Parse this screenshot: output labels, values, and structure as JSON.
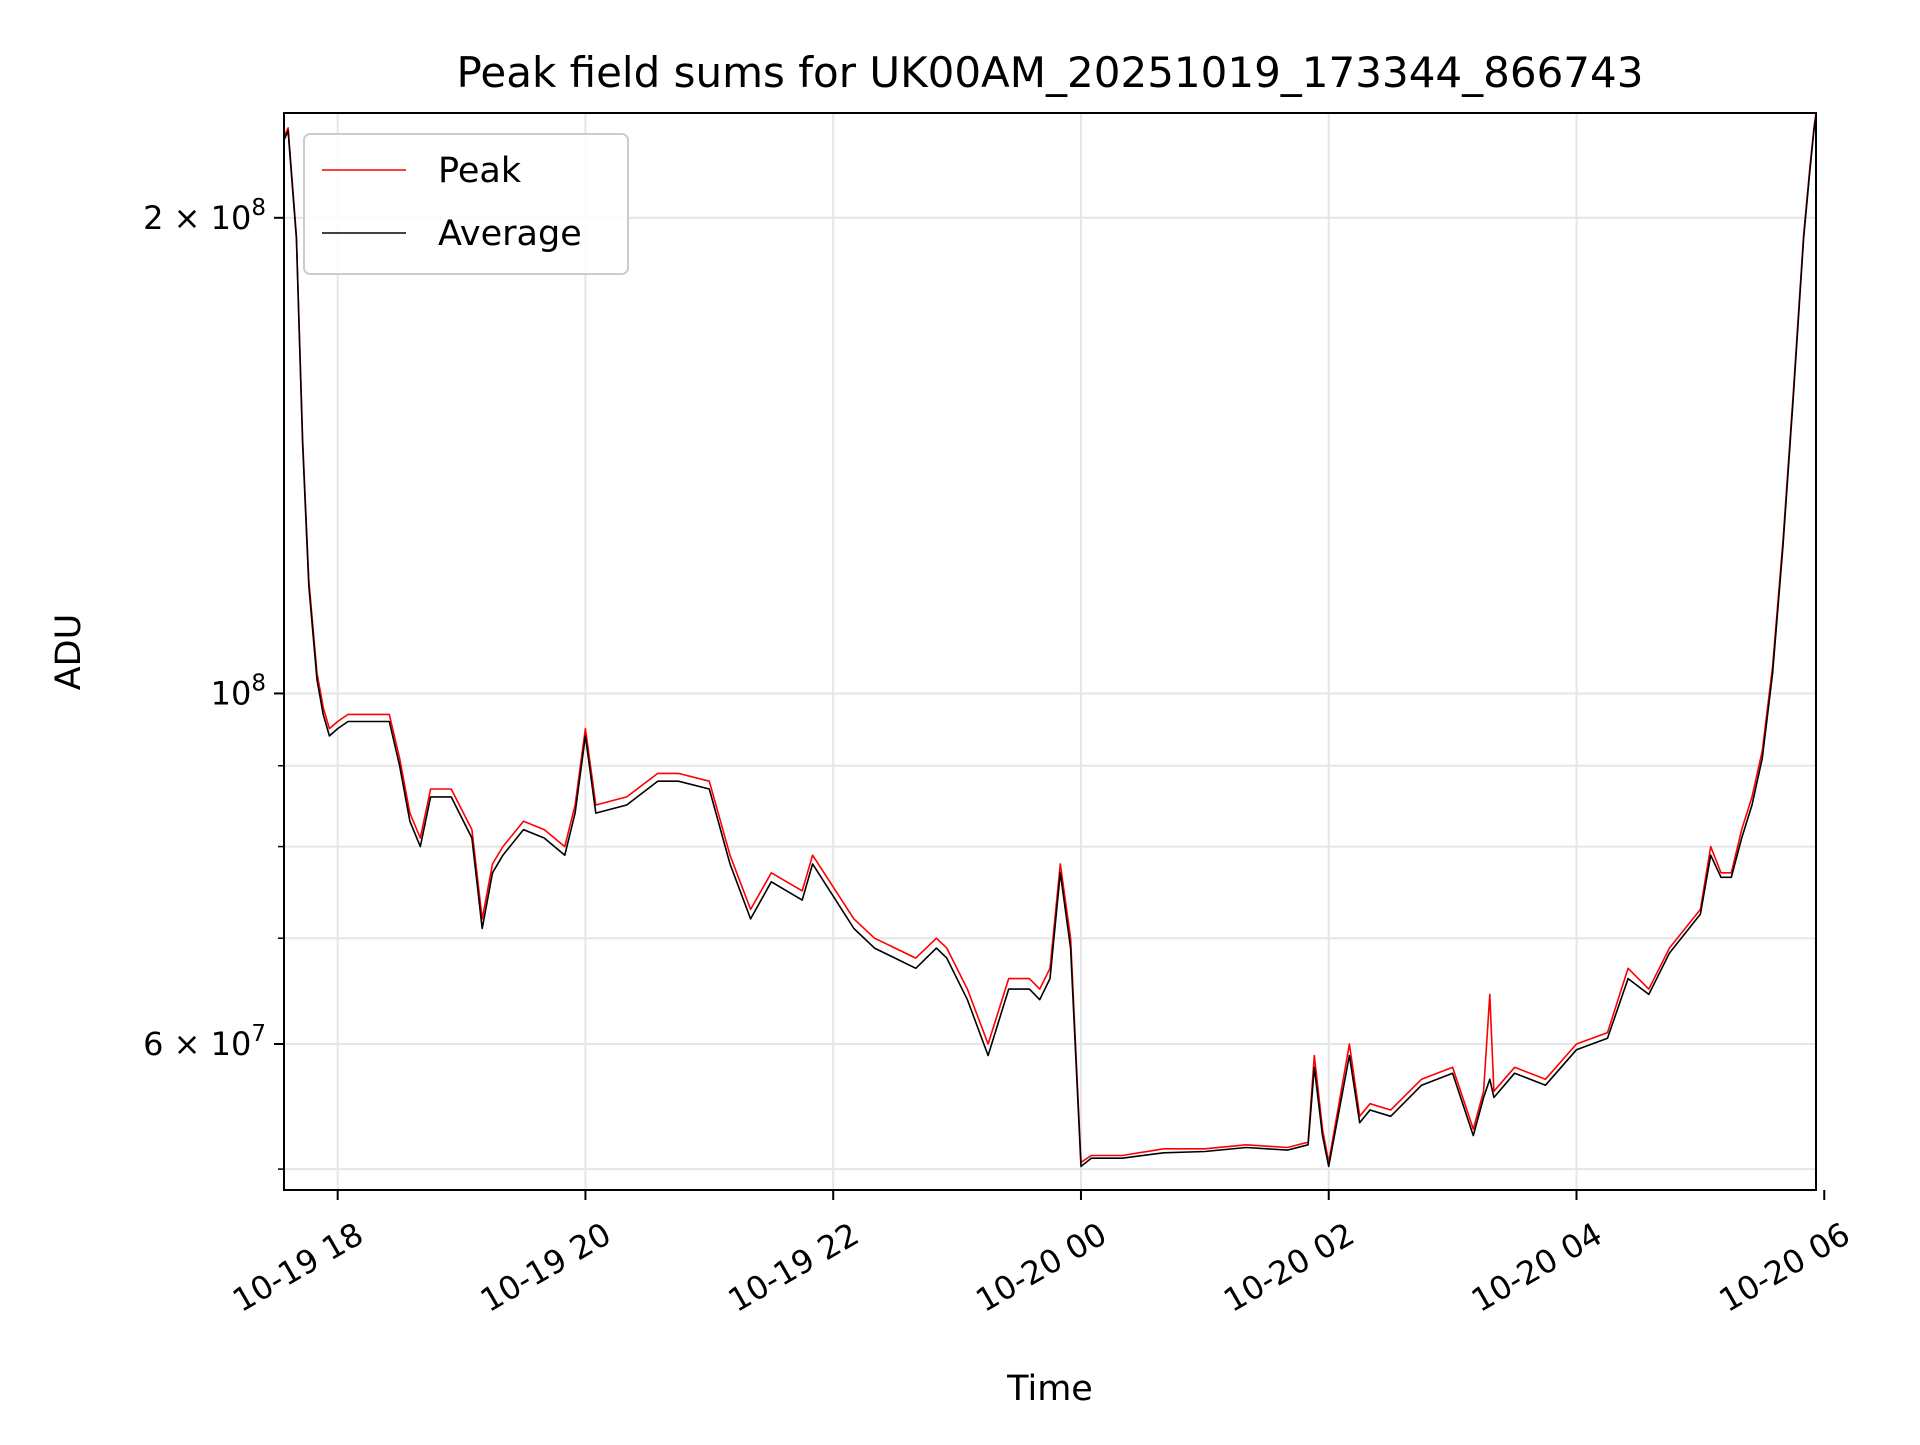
{
  "chart_data": {
    "type": "line",
    "title": "Peak field sums for UK00AM_20251019_173344_866743",
    "xlabel": "Time",
    "ylabel": "ADU",
    "y_scale": "log",
    "ylim": [
      48500000,
      233000000
    ],
    "xlim": [
      "2025-10-19 17:34",
      "2025-10-20 05:56"
    ],
    "grid": true,
    "legend": {
      "placement": "top-left",
      "entries": [
        "Peak",
        "Average"
      ]
    },
    "x_ticks": [
      {
        "t": "2025-10-19 18:00",
        "label": "10-19 18"
      },
      {
        "t": "2025-10-19 20:00",
        "label": "10-19 20"
      },
      {
        "t": "2025-10-19 22:00",
        "label": "10-19 22"
      },
      {
        "t": "2025-10-20 00:00",
        "label": "10-20 00"
      },
      {
        "t": "2025-10-20 02:00",
        "label": "10-20 02"
      },
      {
        "t": "2025-10-20 04:00",
        "label": "10-20 04"
      },
      {
        "t": "2025-10-20 06:00",
        "label": "10-20 06"
      }
    ],
    "y_major_ticks": [
      {
        "value": 200000000,
        "mantissa": "2",
        "exponent": "8"
      },
      {
        "value": 100000000,
        "mantissa": "",
        "exponent": "8"
      },
      {
        "value": 60000000,
        "mantissa": "6",
        "exponent": "7"
      }
    ],
    "y_minor_ticks": [
      50000000,
      70000000,
      80000000,
      90000000
    ],
    "series": [
      {
        "name": "Peak",
        "color": "#ff0000",
        "x": [
          "2025-10-19 17:34",
          "2025-10-19 17:36",
          "2025-10-19 17:40",
          "2025-10-19 17:43",
          "2025-10-19 17:46",
          "2025-10-19 17:50",
          "2025-10-19 17:53",
          "2025-10-19 17:56",
          "2025-10-19 18:00",
          "2025-10-19 18:05",
          "2025-10-19 18:15",
          "2025-10-19 18:25",
          "2025-10-19 18:30",
          "2025-10-19 18:35",
          "2025-10-19 18:40",
          "2025-10-19 18:45",
          "2025-10-19 18:55",
          "2025-10-19 19:05",
          "2025-10-19 19:10",
          "2025-10-19 19:15",
          "2025-10-19 19:20",
          "2025-10-19 19:30",
          "2025-10-19 19:40",
          "2025-10-19 19:50",
          "2025-10-19 19:55",
          "2025-10-19 20:00",
          "2025-10-19 20:05",
          "2025-10-19 20:20",
          "2025-10-19 20:35",
          "2025-10-19 20:45",
          "2025-10-19 21:00",
          "2025-10-19 21:10",
          "2025-10-19 21:20",
          "2025-10-19 21:30",
          "2025-10-19 21:45",
          "2025-10-19 21:50",
          "2025-10-19 22:10",
          "2025-10-19 22:20",
          "2025-10-19 22:40",
          "2025-10-19 22:50",
          "2025-10-19 22:55",
          "2025-10-19 23:05",
          "2025-10-19 23:15",
          "2025-10-19 23:25",
          "2025-10-19 23:35",
          "2025-10-19 23:40",
          "2025-10-19 23:45",
          "2025-10-19 23:50",
          "2025-10-19 23:55",
          "2025-10-20 00:00",
          "2025-10-20 00:05",
          "2025-10-20 00:20",
          "2025-10-20 00:40",
          "2025-10-20 01:00",
          "2025-10-20 01:20",
          "2025-10-20 01:40",
          "2025-10-20 01:50",
          "2025-10-20 01:53",
          "2025-10-20 01:57",
          "2025-10-20 02:00",
          "2025-10-20 02:10",
          "2025-10-20 02:15",
          "2025-10-20 02:20",
          "2025-10-20 02:30",
          "2025-10-20 02:45",
          "2025-10-20 03:00",
          "2025-10-20 03:10",
          "2025-10-20 03:15",
          "2025-10-20 03:18",
          "2025-10-20 03:20",
          "2025-10-20 03:30",
          "2025-10-20 03:45",
          "2025-10-20 04:00",
          "2025-10-20 04:15",
          "2025-10-20 04:25",
          "2025-10-20 04:35",
          "2025-10-20 04:45",
          "2025-10-20 05:00",
          "2025-10-20 05:05",
          "2025-10-20 05:10",
          "2025-10-20 05:15",
          "2025-10-20 05:20",
          "2025-10-20 05:25",
          "2025-10-20 05:30",
          "2025-10-20 05:35",
          "2025-10-20 05:40",
          "2025-10-20 05:45",
          "2025-10-20 05:50",
          "2025-10-20 05:53",
          "2025-10-20 05:55",
          "2025-10-20 05:56"
        ],
        "y": [
          225000000,
          228000000,
          195000000,
          145000000,
          118000000,
          103000000,
          98000000,
          95000000,
          96000000,
          97000000,
          97000000,
          97000000,
          91000000,
          84000000,
          81000000,
          87000000,
          87000000,
          82000000,
          72000000,
          78000000,
          80000000,
          83000000,
          82000000,
          80000000,
          85000000,
          95000000,
          85000000,
          86000000,
          89000000,
          89000000,
          88000000,
          79000000,
          73000000,
          77000000,
          75000000,
          79000000,
          72000000,
          70000000,
          68000000,
          70000000,
          69000000,
          65000000,
          60000000,
          66000000,
          66000000,
          65000000,
          67000000,
          78000000,
          70000000,
          50500000,
          51000000,
          51000000,
          51500000,
          51500000,
          51800000,
          51600000,
          52000000,
          59000000,
          53000000,
          50500000,
          60000000,
          54000000,
          55000000,
          54500000,
          57000000,
          58000000,
          53000000,
          56000000,
          64500000,
          56000000,
          58000000,
          57000000,
          60000000,
          61000000,
          67000000,
          65000000,
          69000000,
          73000000,
          80000000,
          77000000,
          77000000,
          82000000,
          86000000,
          92000000,
          104000000,
          125000000,
          155000000,
          195000000,
          215000000,
          228000000,
          233000000
        ]
      },
      {
        "name": "Average",
        "color": "#000000",
        "x": [
          "2025-10-19 17:34",
          "2025-10-19 17:36",
          "2025-10-19 17:40",
          "2025-10-19 17:43",
          "2025-10-19 17:46",
          "2025-10-19 17:50",
          "2025-10-19 17:53",
          "2025-10-19 17:56",
          "2025-10-19 18:00",
          "2025-10-19 18:05",
          "2025-10-19 18:15",
          "2025-10-19 18:25",
          "2025-10-19 18:30",
          "2025-10-19 18:35",
          "2025-10-19 18:40",
          "2025-10-19 18:45",
          "2025-10-19 18:55",
          "2025-10-19 19:05",
          "2025-10-19 19:10",
          "2025-10-19 19:15",
          "2025-10-19 19:20",
          "2025-10-19 19:30",
          "2025-10-19 19:40",
          "2025-10-19 19:50",
          "2025-10-19 19:55",
          "2025-10-19 20:00",
          "2025-10-19 20:05",
          "2025-10-19 20:20",
          "2025-10-19 20:35",
          "2025-10-19 20:45",
          "2025-10-19 21:00",
          "2025-10-19 21:10",
          "2025-10-19 21:20",
          "2025-10-19 21:30",
          "2025-10-19 21:45",
          "2025-10-19 21:50",
          "2025-10-19 22:10",
          "2025-10-19 22:20",
          "2025-10-19 22:40",
          "2025-10-19 22:50",
          "2025-10-19 22:55",
          "2025-10-19 23:05",
          "2025-10-19 23:15",
          "2025-10-19 23:25",
          "2025-10-19 23:35",
          "2025-10-19 23:40",
          "2025-10-19 23:45",
          "2025-10-19 23:50",
          "2025-10-19 23:55",
          "2025-10-20 00:00",
          "2025-10-20 00:05",
          "2025-10-20 00:20",
          "2025-10-20 00:40",
          "2025-10-20 01:00",
          "2025-10-20 01:20",
          "2025-10-20 01:40",
          "2025-10-20 01:50",
          "2025-10-20 01:53",
          "2025-10-20 01:57",
          "2025-10-20 02:00",
          "2025-10-20 02:10",
          "2025-10-20 02:15",
          "2025-10-20 02:20",
          "2025-10-20 02:30",
          "2025-10-20 02:45",
          "2025-10-20 03:00",
          "2025-10-20 03:10",
          "2025-10-20 03:15",
          "2025-10-20 03:18",
          "2025-10-20 03:20",
          "2025-10-20 03:30",
          "2025-10-20 03:45",
          "2025-10-20 04:00",
          "2025-10-20 04:15",
          "2025-10-20 04:25",
          "2025-10-20 04:35",
          "2025-10-20 04:45",
          "2025-10-20 05:00",
          "2025-10-20 05:05",
          "2025-10-20 05:10",
          "2025-10-20 05:15",
          "2025-10-20 05:20",
          "2025-10-20 05:25",
          "2025-10-20 05:30",
          "2025-10-20 05:35",
          "2025-10-20 05:40",
          "2025-10-20 05:45",
          "2025-10-20 05:50",
          "2025-10-20 05:53",
          "2025-10-20 05:55",
          "2025-10-20 05:56"
        ],
        "y": [
          224000000,
          227000000,
          194000000,
          144000000,
          117000000,
          102000000,
          97000000,
          94000000,
          95000000,
          96000000,
          96000000,
          96000000,
          90000000,
          83000000,
          80000000,
          86000000,
          86000000,
          81000000,
          71000000,
          77000000,
          79000000,
          82000000,
          81000000,
          79000000,
          84000000,
          94000000,
          84000000,
          85000000,
          88000000,
          88000000,
          87000000,
          78000000,
          72000000,
          76000000,
          74000000,
          78000000,
          71000000,
          69000000,
          67000000,
          69000000,
          68000000,
          64000000,
          59000000,
          65000000,
          65000000,
          64000000,
          66000000,
          77000000,
          69000000,
          50200000,
          50800000,
          50800000,
          51200000,
          51300000,
          51600000,
          51400000,
          51800000,
          58000000,
          52500000,
          50200000,
          59000000,
          53500000,
          54500000,
          54000000,
          56500000,
          57500000,
          52500000,
          55500000,
          57000000,
          55500000,
          57500000,
          56500000,
          59500000,
          60500000,
          66000000,
          64500000,
          68500000,
          72500000,
          79000000,
          76500000,
          76500000,
          81000000,
          85000000,
          91000000,
          103000000,
          124000000,
          154000000,
          194000000,
          214000000,
          227000000,
          232000000
        ]
      }
    ]
  }
}
